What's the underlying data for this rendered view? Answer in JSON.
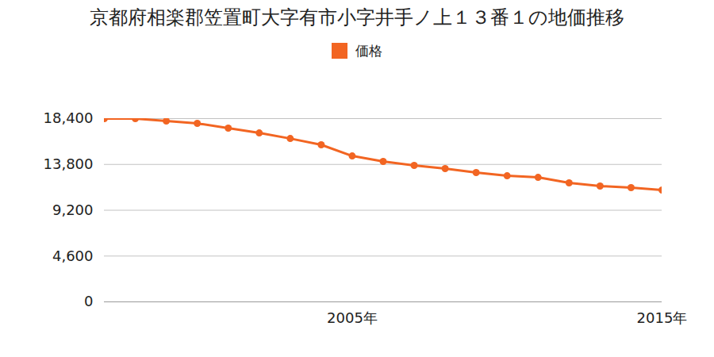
{
  "chart_data": {
    "type": "line",
    "title": "京都府相楽郡笠置町大字有市小字井手ノ上１３番１の地価推移",
    "x": [
      1997,
      1998,
      1999,
      2000,
      2001,
      2002,
      2003,
      2004,
      2005,
      2006,
      2007,
      2008,
      2009,
      2010,
      2011,
      2012,
      2013,
      2014,
      2015
    ],
    "series": [
      {
        "name": "価格",
        "color": "#f26522",
        "marker": "circle",
        "values": [
          18400,
          18400,
          18160,
          17920,
          17440,
          16960,
          16400,
          15770,
          14650,
          14100,
          13700,
          13380,
          12980,
          12660,
          12500,
          11950,
          11630,
          11470,
          11230
        ]
      }
    ],
    "xlim": [
      1997,
      2015
    ],
    "xticks": [
      {
        "value": 2005,
        "label": "2005年"
      },
      {
        "value": 2015,
        "label": "2015年"
      }
    ],
    "ylim": [
      0,
      18400
    ],
    "yticks": [
      {
        "value": 0,
        "label": "0"
      },
      {
        "value": 4600,
        "label": "4,600"
      },
      {
        "value": 9200,
        "label": "9,200"
      },
      {
        "value": 13800,
        "label": "13,800"
      },
      {
        "value": 18400,
        "label": "18,400"
      }
    ],
    "grid": true,
    "legend": "top"
  }
}
